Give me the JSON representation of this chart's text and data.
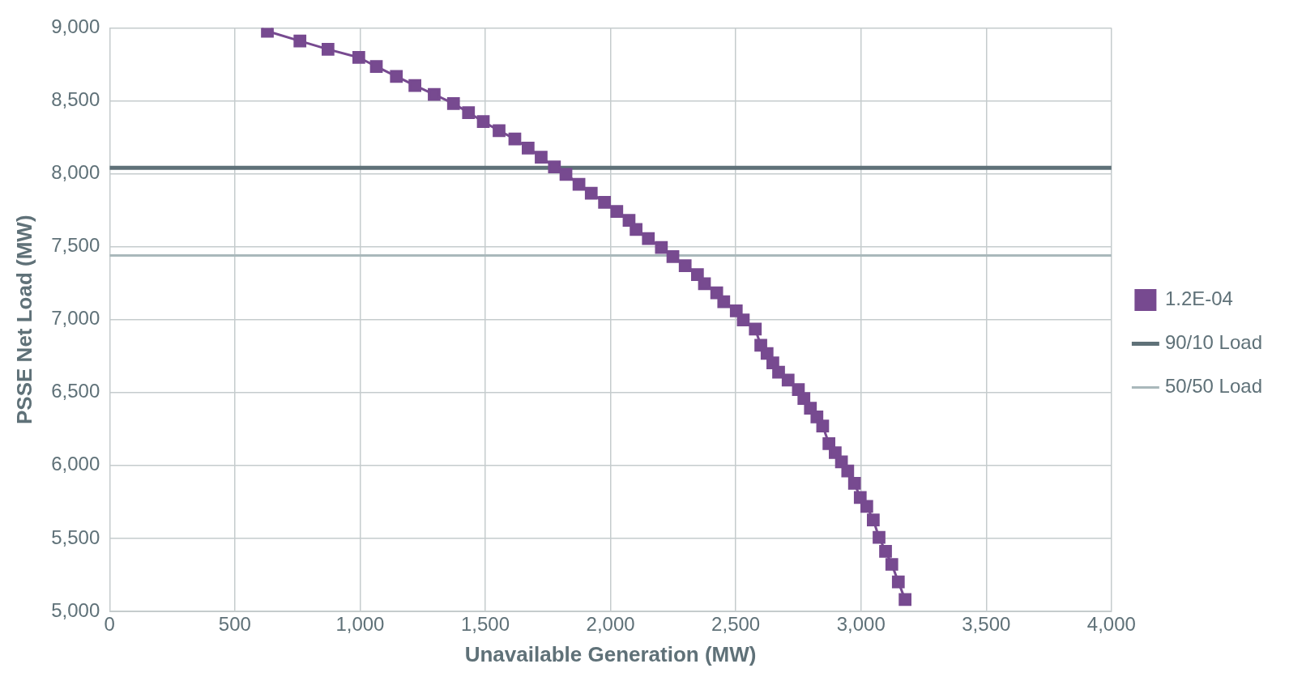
{
  "chart_data": {
    "type": "line",
    "xlabel": "Unavailable Generation (MW)",
    "ylabel": "PSSE Net Load (MW)",
    "xlim": [
      0,
      4000
    ],
    "xticks": [
      0,
      500,
      {
        "value": 1000,
        "label": "1,000"
      },
      {
        "value": 1500,
        "label": "1,500"
      },
      {
        "value": 2000,
        "label": "2,000"
      },
      {
        "value": 2500,
        "label": "2,500"
      },
      {
        "value": 3000,
        "label": "3,000"
      },
      {
        "value": 3500,
        "label": "3,500"
      },
      {
        "value": 4000,
        "label": "4,000"
      }
    ],
    "ylim": [
      5000,
      9000
    ],
    "yticks": [
      {
        "value": 5000,
        "label": "5,000"
      },
      {
        "value": 5500,
        "label": "5,500"
      },
      {
        "value": 6000,
        "label": "6,000"
      },
      {
        "value": 6500,
        "label": "6,500"
      },
      {
        "value": 7000,
        "label": "7,000"
      },
      {
        "value": 7500,
        "label": "7,500"
      },
      {
        "value": 8000,
        "label": "8,000"
      },
      {
        "value": 8500,
        "label": "8,500"
      },
      {
        "value": 9000,
        "label": "9,000"
      }
    ],
    "grid": true,
    "legend": "right",
    "series": [
      {
        "name": "1.2E-04",
        "color": "#774a90",
        "marker": "square",
        "x": [
          630,
          760,
          872,
          995,
          1065,
          1145,
          1219,
          1296,
          1373,
          1433,
          1492,
          1555,
          1618,
          1671,
          1723,
          1776,
          1822,
          1874,
          1923,
          1976,
          2025,
          2074,
          2102,
          2151,
          2203,
          2249,
          2298,
          2347,
          2375,
          2424,
          2452,
          2502,
          2530,
          2578,
          2600,
          2625,
          2648,
          2671,
          2709,
          2750,
          2772,
          2798,
          2824,
          2847,
          2872,
          2897,
          2922,
          2947,
          2974,
          2997,
          3023,
          3049,
          3072,
          3098,
          3123,
          3149,
          3176
        ],
        "values": [
          8977,
          8910,
          8853,
          8797,
          8735,
          8667,
          8605,
          8543,
          8481,
          8419,
          8357,
          8295,
          8238,
          8176,
          8114,
          8047,
          7996,
          7928,
          7866,
          7804,
          7742,
          7680,
          7618,
          7556,
          7494,
          7432,
          7370,
          7308,
          7246,
          7184,
          7122,
          7060,
          6998,
          6935,
          6824,
          6768,
          6704,
          6640,
          6585,
          6520,
          6459,
          6392,
          6333,
          6271,
          6150,
          6088,
          6025,
          5962,
          5878,
          5780,
          5720,
          5627,
          5507,
          5411,
          5322,
          5202,
          5081
        ]
      },
      {
        "name": "90/10 Load",
        "color": "#5f7178",
        "marker": "none",
        "x": [
          0,
          4000
        ],
        "values": [
          8040,
          8040
        ]
      },
      {
        "name": "50/50 Load",
        "color": "#a9b8bb",
        "marker": "none",
        "x": [
          0,
          4000
        ],
        "values": [
          7440,
          7440
        ]
      }
    ]
  }
}
